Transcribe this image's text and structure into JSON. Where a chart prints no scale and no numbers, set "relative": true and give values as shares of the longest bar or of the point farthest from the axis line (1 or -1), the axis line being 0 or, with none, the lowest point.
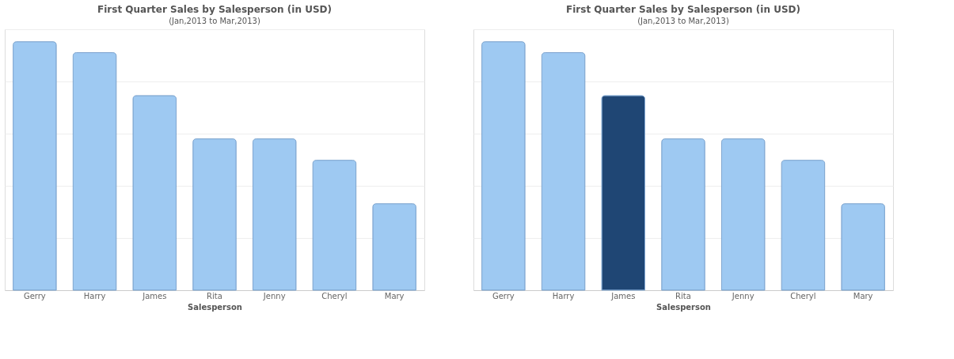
{
  "chart_data": [
    {
      "type": "bar",
      "title": "First Quarter Sales by Salesperson (in USD)",
      "subtitle": "(Jan,2013 to Mar,2013)",
      "xlabel": "Salesperson",
      "categories": [
        "Gerry",
        "Harry",
        "James",
        "Rita",
        "Jenny",
        "Cheryl",
        "Mary"
      ],
      "values": [
        1,
        0.956,
        0.783,
        0.609,
        0.609,
        0.523,
        0.348
      ],
      "colors": [
        "#9ec9f2",
        "#9ec9f2",
        "#9ec9f2",
        "#9ec9f2",
        "#9ec9f2",
        "#9ec9f2",
        "#9ec9f2"
      ],
      "relative": true,
      "grid": "y"
    },
    {
      "type": "bar",
      "title": "First Quarter Sales by Salesperson (in USD)",
      "subtitle": "(Jan,2013 to Mar,2013)",
      "xlabel": "Salesperson",
      "categories": [
        "Gerry",
        "Harry",
        "James",
        "Rita",
        "Jenny",
        "Cheryl",
        "Mary"
      ],
      "values": [
        1,
        0.956,
        0.783,
        0.609,
        0.609,
        0.523,
        0.348
      ],
      "colors": [
        "#9ec9f2",
        "#9ec9f2",
        "#1f4674",
        "#9ec9f2",
        "#9ec9f2",
        "#9ec9f2",
        "#9ec9f2"
      ],
      "relative": true,
      "grid": "y",
      "tick_labels": "x"
    }
  ]
}
